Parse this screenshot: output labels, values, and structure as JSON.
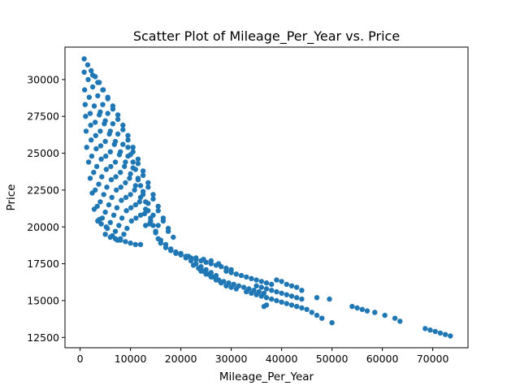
{
  "chart_data": {
    "type": "scatter",
    "title": "Scatter Plot of Mileage_Per_Year vs. Price",
    "xlabel": "Mileage_Per_Year",
    "ylabel": "Price",
    "xlim": [
      -3000,
      77000
    ],
    "ylim": [
      11800,
      32200
    ],
    "xticks": [
      0,
      10000,
      20000,
      30000,
      40000,
      50000,
      60000,
      70000
    ],
    "xtick_labels": [
      "0",
      "10000",
      "20000",
      "30000",
      "40000",
      "50000",
      "60000",
      "70000"
    ],
    "yticks": [
      12500,
      15000,
      17500,
      20000,
      22500,
      25000,
      27500,
      30000
    ],
    "ytick_labels": [
      "12500",
      "15000",
      "17500",
      "20000",
      "22500",
      "25000",
      "27500",
      "30000"
    ],
    "grid": false,
    "marker_color": "#1f77b4",
    "series": [
      {
        "points": [
          [
            800,
            31400
          ],
          [
            1500,
            31000
          ],
          [
            2200,
            30600
          ],
          [
            3000,
            30200
          ],
          [
            3800,
            29800
          ],
          [
            4600,
            29300
          ],
          [
            5500,
            28800
          ],
          [
            6500,
            28200
          ],
          [
            7500,
            27600
          ],
          [
            8500,
            26900
          ],
          [
            9500,
            26200
          ],
          [
            10500,
            25400
          ],
          [
            11500,
            24600
          ],
          [
            12500,
            23800
          ],
          [
            13500,
            23000
          ],
          [
            14500,
            22200
          ],
          [
            15500,
            21400
          ],
          [
            16500,
            20600
          ],
          [
            17500,
            19900
          ],
          [
            18500,
            19300
          ],
          [
            800,
            30500
          ],
          [
            1600,
            30000
          ],
          [
            2500,
            29500
          ],
          [
            3500,
            28900
          ],
          [
            4500,
            28300
          ],
          [
            5500,
            27700
          ],
          [
            6500,
            27000
          ],
          [
            7500,
            26300
          ],
          [
            8500,
            25600
          ],
          [
            9500,
            24800
          ],
          [
            10500,
            24000
          ],
          [
            11500,
            23200
          ],
          [
            12500,
            22400
          ],
          [
            13500,
            21600
          ],
          [
            14500,
            20800
          ],
          [
            15500,
            20100
          ],
          [
            900,
            29300
          ],
          [
            1800,
            28800
          ],
          [
            2800,
            28200
          ],
          [
            3800,
            27600
          ],
          [
            4800,
            27000
          ],
          [
            5800,
            26300
          ],
          [
            6800,
            25600
          ],
          [
            7800,
            24900
          ],
          [
            8800,
            24100
          ],
          [
            9800,
            23300
          ],
          [
            10800,
            22500
          ],
          [
            11800,
            21700
          ],
          [
            12800,
            20900
          ],
          [
            13800,
            20200
          ],
          [
            1000,
            28300
          ],
          [
            2000,
            27700
          ],
          [
            3000,
            27100
          ],
          [
            4000,
            26500
          ],
          [
            5000,
            25800
          ],
          [
            6000,
            25100
          ],
          [
            7000,
            24400
          ],
          [
            8000,
            23700
          ],
          [
            9000,
            23000
          ],
          [
            10000,
            22200
          ],
          [
            11000,
            21500
          ],
          [
            12000,
            20800
          ],
          [
            13000,
            20100
          ],
          [
            1100,
            27500
          ],
          [
            2100,
            26900
          ],
          [
            3100,
            26200
          ],
          [
            4100,
            25500
          ],
          [
            5100,
            24800
          ],
          [
            6100,
            24100
          ],
          [
            7100,
            23400
          ],
          [
            8100,
            22700
          ],
          [
            9100,
            22000
          ],
          [
            10100,
            21300
          ],
          [
            11100,
            20600
          ],
          [
            1200,
            26500
          ],
          [
            2200,
            25900
          ],
          [
            3200,
            25300
          ],
          [
            4200,
            24600
          ],
          [
            5200,
            23900
          ],
          [
            6200,
            23200
          ],
          [
            7200,
            22500
          ],
          [
            8200,
            21800
          ],
          [
            9200,
            21100
          ],
          [
            10200,
            20400
          ],
          [
            1300,
            25400
          ],
          [
            2300,
            24800
          ],
          [
            3300,
            24100
          ],
          [
            4300,
            23400
          ],
          [
            5300,
            22700
          ],
          [
            6300,
            22000
          ],
          [
            7300,
            21300
          ],
          [
            8300,
            20600
          ],
          [
            9300,
            19900
          ],
          [
            1700,
            24400
          ],
          [
            2700,
            23700
          ],
          [
            3700,
            22900
          ],
          [
            4700,
            22200
          ],
          [
            5700,
            21500
          ],
          [
            6700,
            20800
          ],
          [
            7700,
            20100
          ],
          [
            8700,
            19500
          ],
          [
            2000,
            23300
          ],
          [
            3000,
            22500
          ],
          [
            4000,
            21700
          ],
          [
            5000,
            21000
          ],
          [
            6000,
            20300
          ],
          [
            7000,
            19700
          ],
          [
            8000,
            19200
          ],
          [
            2400,
            22300
          ],
          [
            3400,
            21400
          ],
          [
            4400,
            20600
          ],
          [
            5400,
            19900
          ],
          [
            6400,
            19400
          ],
          [
            7400,
            19100
          ],
          [
            2800,
            21200
          ],
          [
            3800,
            20500
          ],
          [
            5000,
            19500
          ],
          [
            6000,
            19300
          ],
          [
            7000,
            19200
          ],
          [
            8000,
            19100
          ],
          [
            9000,
            19000
          ],
          [
            10000,
            18900
          ],
          [
            11000,
            18800
          ],
          [
            12000,
            18800
          ],
          [
            3500,
            20400
          ],
          [
            4200,
            20200
          ],
          [
            5200,
            20000
          ],
          [
            2500,
            30300
          ],
          [
            3500,
            29800
          ],
          [
            4500,
            29300
          ],
          [
            5500,
            28700
          ],
          [
            6500,
            28000
          ],
          [
            7500,
            27300
          ],
          [
            8500,
            26600
          ],
          [
            9500,
            25900
          ],
          [
            10500,
            25100
          ],
          [
            11500,
            24300
          ],
          [
            12500,
            23500
          ],
          [
            13500,
            22700
          ],
          [
            14500,
            21900
          ],
          [
            15500,
            21100
          ],
          [
            16500,
            20400
          ],
          [
            17500,
            19700
          ],
          [
            4000,
            27800
          ],
          [
            5000,
            27200
          ],
          [
            6000,
            26500
          ],
          [
            7000,
            25800
          ],
          [
            8000,
            25100
          ],
          [
            9000,
            24400
          ],
          [
            10000,
            23600
          ],
          [
            11000,
            22800
          ],
          [
            12000,
            22000
          ],
          [
            13000,
            21200
          ],
          [
            14000,
            20400
          ],
          [
            15000,
            19700
          ],
          [
            16000,
            19100
          ],
          [
            9500,
            25400
          ],
          [
            10000,
            24900
          ],
          [
            10500,
            24400
          ],
          [
            11000,
            23900
          ],
          [
            11500,
            23300
          ],
          [
            12000,
            22800
          ],
          [
            12500,
            22200
          ],
          [
            13000,
            21700
          ],
          [
            13500,
            21100
          ],
          [
            14000,
            20600
          ],
          [
            14500,
            20100
          ],
          [
            15000,
            19600
          ],
          [
            15500,
            19200
          ],
          [
            17000,
            18800
          ],
          [
            18000,
            18500
          ],
          [
            19000,
            18300
          ],
          [
            20000,
            18200
          ],
          [
            21000,
            18000
          ],
          [
            22000,
            17900
          ],
          [
            23000,
            17800
          ],
          [
            24000,
            17700
          ],
          [
            25000,
            17600
          ],
          [
            26000,
            17500
          ],
          [
            27000,
            17400
          ],
          [
            28000,
            17300
          ],
          [
            29000,
            17200
          ],
          [
            30000,
            17100
          ],
          [
            21000,
            17900
          ],
          [
            22000,
            17700
          ],
          [
            23000,
            17500
          ],
          [
            24000,
            17300
          ],
          [
            25000,
            17100
          ],
          [
            26000,
            16900
          ],
          [
            27000,
            16700
          ],
          [
            22500,
            17400
          ],
          [
            23500,
            17200
          ],
          [
            24500,
            17000
          ],
          [
            25500,
            16800
          ],
          [
            26500,
            16600
          ],
          [
            27500,
            16400
          ],
          [
            24000,
            17000
          ],
          [
            25000,
            16800
          ],
          [
            26000,
            16600
          ],
          [
            27000,
            16400
          ],
          [
            28000,
            16200
          ],
          [
            29000,
            16000
          ],
          [
            30000,
            15900
          ],
          [
            31000,
            15800
          ],
          [
            29000,
            17000
          ],
          [
            30000,
            16900
          ],
          [
            31000,
            16800
          ],
          [
            32000,
            16700
          ],
          [
            33000,
            16600
          ],
          [
            34000,
            16500
          ],
          [
            35000,
            16400
          ],
          [
            36000,
            16300
          ],
          [
            37000,
            16200
          ],
          [
            38000,
            16100
          ],
          [
            27500,
            16400
          ],
          [
            28500,
            16300
          ],
          [
            29500,
            16200
          ],
          [
            30500,
            16100
          ],
          [
            31500,
            16000
          ],
          [
            32500,
            15900
          ],
          [
            33500,
            15800
          ],
          [
            34500,
            15700
          ],
          [
            35500,
            15600
          ],
          [
            36500,
            15500
          ],
          [
            35000,
            16000
          ],
          [
            36000,
            15900
          ],
          [
            37000,
            15800
          ],
          [
            38000,
            15700
          ],
          [
            39000,
            15600
          ],
          [
            40000,
            15500
          ],
          [
            41000,
            15400
          ],
          [
            42000,
            15300
          ],
          [
            43000,
            15200
          ],
          [
            44000,
            15100
          ],
          [
            33000,
            15600
          ],
          [
            34000,
            15500
          ],
          [
            35000,
            15400
          ],
          [
            36000,
            15300
          ],
          [
            37000,
            15200
          ],
          [
            38000,
            15100
          ],
          [
            39000,
            15000
          ],
          [
            40000,
            14900
          ],
          [
            41000,
            14800
          ],
          [
            42000,
            14700
          ],
          [
            43000,
            14600
          ],
          [
            44000,
            14500
          ],
          [
            45000,
            14400
          ],
          [
            46000,
            14200
          ],
          [
            47000,
            14000
          ],
          [
            48000,
            13800
          ],
          [
            50000,
            13500
          ],
          [
            39000,
            16400
          ],
          [
            40000,
            16300
          ],
          [
            41000,
            16100
          ],
          [
            42000,
            16000
          ],
          [
            43000,
            15900
          ],
          [
            44000,
            15700
          ],
          [
            47000,
            15200
          ],
          [
            49500,
            15100
          ],
          [
            37000,
            14700
          ],
          [
            36500,
            14600
          ],
          [
            54000,
            14600
          ],
          [
            55000,
            14500
          ],
          [
            56000,
            14400
          ],
          [
            57000,
            14300
          ],
          [
            58500,
            14200
          ],
          [
            60500,
            14000
          ],
          [
            62500,
            13800
          ],
          [
            63500,
            13600
          ],
          [
            68500,
            13100
          ],
          [
            69500,
            13000
          ],
          [
            70500,
            12900
          ],
          [
            71500,
            12800
          ],
          [
            72500,
            12700
          ],
          [
            73500,
            12600
          ],
          [
            16000,
            18900
          ],
          [
            17000,
            18600
          ],
          [
            18000,
            18400
          ],
          [
            19000,
            18200
          ],
          [
            20000,
            18100
          ],
          [
            21500,
            18000
          ],
          [
            23000,
            17900
          ],
          [
            24500,
            17800
          ],
          [
            26000,
            17700
          ],
          [
            27500,
            17500
          ]
        ]
      }
    ]
  }
}
